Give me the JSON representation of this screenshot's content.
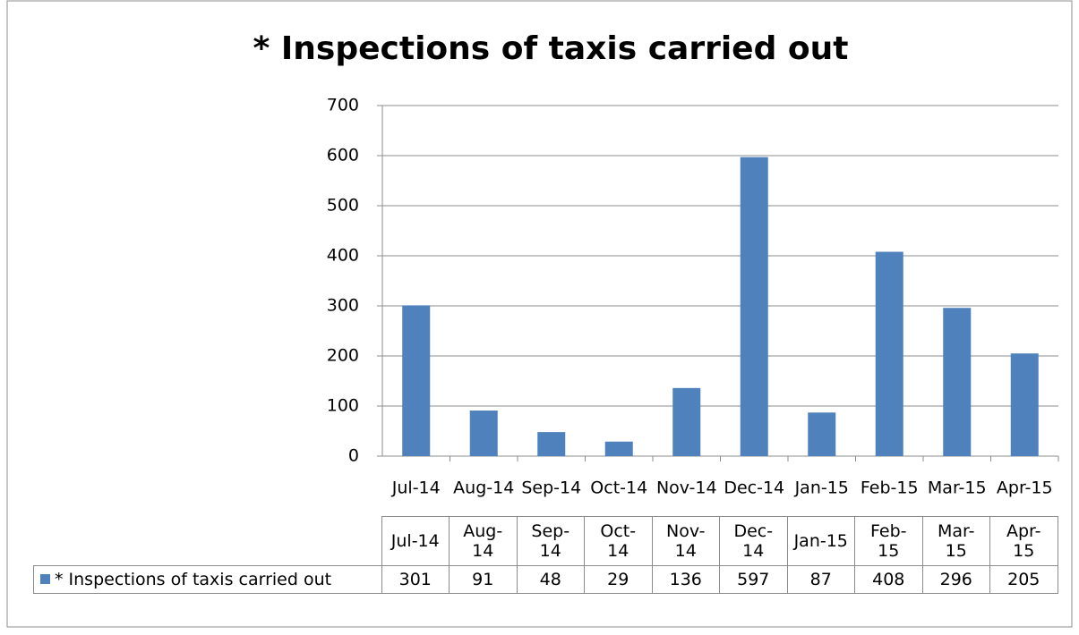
{
  "chart_data": {
    "type": "bar",
    "title": "* Inspections of taxis carried out",
    "categories": [
      "Jul-14",
      "Aug-14",
      "Sep-14",
      "Oct-14",
      "Nov-14",
      "Dec-14",
      "Jan-15",
      "Feb-15",
      "Mar-15",
      "Apr-15"
    ],
    "series": [
      {
        "name": "* Inspections of taxis carried out",
        "color": "#4f81bd",
        "values": [
          301,
          91,
          48,
          29,
          136,
          597,
          87,
          408,
          296,
          205
        ]
      }
    ],
    "ylim": [
      0,
      700
    ],
    "yticks": [
      0,
      100,
      200,
      300,
      400,
      500,
      600,
      700
    ],
    "grid": true,
    "data_table": true
  }
}
